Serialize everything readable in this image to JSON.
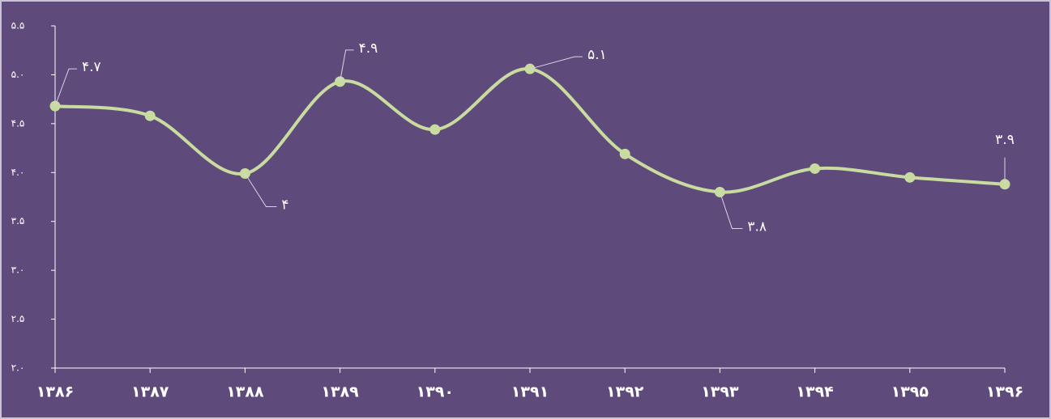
{
  "chart_data": {
    "type": "line",
    "categories": [
      "۱۳۸۶",
      "۱۳۸۷",
      "۱۳۸۸",
      "۱۳۸۹",
      "۱۳۹۰",
      "۱۳۹۱",
      "۱۳۹۲",
      "۱۳۹۳",
      "۱۳۹۴",
      "۱۳۹۵",
      "۱۳۹۶"
    ],
    "values": [
      4.68,
      4.58,
      3.99,
      4.93,
      4.44,
      5.06,
      4.19,
      3.8,
      4.04,
      3.95,
      3.88
    ],
    "value_labels": [
      "۴.۷",
      null,
      "۴",
      "۴.۹",
      null,
      "۵.۱",
      null,
      "۳.۸",
      null,
      null,
      "۳.۹"
    ],
    "color": "#c9dc9f",
    "ylim": [
      2.0,
      5.5
    ],
    "yticks": [
      {
        "value": 2.0,
        "label": "۲.۰"
      },
      {
        "value": 2.5,
        "label": "۲.۵"
      },
      {
        "value": 3.0,
        "label": "۳.۰"
      },
      {
        "value": 3.5,
        "label": "۳.۵"
      },
      {
        "value": 4.0,
        "label": "۴.۰"
      },
      {
        "value": 4.5,
        "label": "۴.۵"
      },
      {
        "value": 5.0,
        "label": "۵.۰"
      },
      {
        "value": 5.5,
        "label": "۵.۵"
      }
    ],
    "grid": false
  }
}
